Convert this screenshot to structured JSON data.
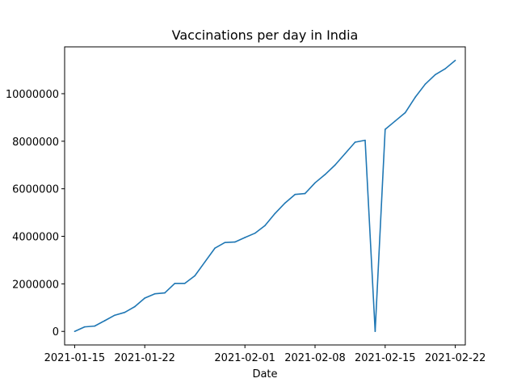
{
  "chart_data": {
    "type": "line",
    "title": "Vaccinations per day in India",
    "xlabel": "Date",
    "ylabel": "",
    "grid": false,
    "legend": "none",
    "xlim": [
      "2021-01-14",
      "2021-02-23"
    ],
    "ylim": [
      -570000,
      11970000
    ],
    "x_ticks": [
      "2021-01-15",
      "2021-01-22",
      "2021-02-01",
      "2021-02-08",
      "2021-02-15",
      "2021-02-22"
    ],
    "y_ticks": [
      0,
      2000000,
      4000000,
      6000000,
      8000000,
      10000000
    ],
    "y_tick_labels": [
      "0",
      "2000000",
      "4000000",
      "6000000",
      "8000000",
      "10000000"
    ],
    "series": [
      {
        "color": "#1f77b4",
        "points": [
          {
            "x": "2021-01-15",
            "y": 0
          },
          {
            "x": "2021-01-16",
            "y": 190000
          },
          {
            "x": "2021-01-17",
            "y": 225000
          },
          {
            "x": "2021-01-18",
            "y": 450000
          },
          {
            "x": "2021-01-19",
            "y": 680000
          },
          {
            "x": "2021-01-20",
            "y": 800000
          },
          {
            "x": "2021-01-21",
            "y": 1040000
          },
          {
            "x": "2021-01-22",
            "y": 1400000
          },
          {
            "x": "2021-01-23",
            "y": 1580000
          },
          {
            "x": "2021-01-24",
            "y": 1620000
          },
          {
            "x": "2021-01-25",
            "y": 2020000
          },
          {
            "x": "2021-01-26",
            "y": 2020000
          },
          {
            "x": "2021-01-27",
            "y": 2340000
          },
          {
            "x": "2021-01-28",
            "y": 2920000
          },
          {
            "x": "2021-01-29",
            "y": 3500000
          },
          {
            "x": "2021-01-30",
            "y": 3740000
          },
          {
            "x": "2021-01-31",
            "y": 3760000
          },
          {
            "x": "2021-02-01",
            "y": 3950000
          },
          {
            "x": "2021-02-02",
            "y": 4130000
          },
          {
            "x": "2021-02-03",
            "y": 4450000
          },
          {
            "x": "2021-02-04",
            "y": 4960000
          },
          {
            "x": "2021-02-05",
            "y": 5400000
          },
          {
            "x": "2021-02-06",
            "y": 5760000
          },
          {
            "x": "2021-02-07",
            "y": 5800000
          },
          {
            "x": "2021-02-08",
            "y": 6250000
          },
          {
            "x": "2021-02-09",
            "y": 6600000
          },
          {
            "x": "2021-02-10",
            "y": 7000000
          },
          {
            "x": "2021-02-11",
            "y": 7480000
          },
          {
            "x": "2021-02-12",
            "y": 7960000
          },
          {
            "x": "2021-02-13",
            "y": 8040000
          },
          {
            "x": "2021-02-14",
            "y": 0
          },
          {
            "x": "2021-02-15",
            "y": 8500000
          },
          {
            "x": "2021-02-16",
            "y": 8850000
          },
          {
            "x": "2021-02-17",
            "y": 9200000
          },
          {
            "x": "2021-02-18",
            "y": 9850000
          },
          {
            "x": "2021-02-19",
            "y": 10400000
          },
          {
            "x": "2021-02-20",
            "y": 10800000
          },
          {
            "x": "2021-02-21",
            "y": 11050000
          },
          {
            "x": "2021-02-22",
            "y": 11400000
          }
        ]
      }
    ]
  }
}
